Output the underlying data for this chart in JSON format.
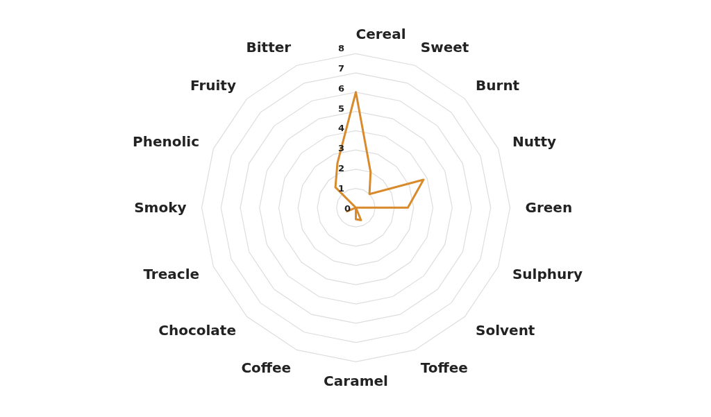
{
  "chart_data": {
    "type": "radar",
    "categories": [
      "Cereal",
      "Sweet",
      "Burnt",
      "Nutty",
      "Green",
      "Sulphury",
      "Solvent",
      "Toffee",
      "Caramel",
      "Coffee",
      "Chocolate",
      "Treacle",
      "Smoky",
      "Phenolic",
      "Fruity",
      "Bitter"
    ],
    "series": [
      {
        "color": "#d88a2c",
        "values": [
          6,
          2,
          1,
          3.8,
          2.7,
          0,
          0,
          0.7,
          0.6,
          0,
          0,
          0.5,
          0,
          0,
          1.5,
          2.5
        ]
      }
    ],
    "ylim": [
      0,
      8
    ],
    "yticks": [
      0,
      1,
      2,
      3,
      4,
      5,
      6,
      7,
      8
    ],
    "grid": true
  }
}
